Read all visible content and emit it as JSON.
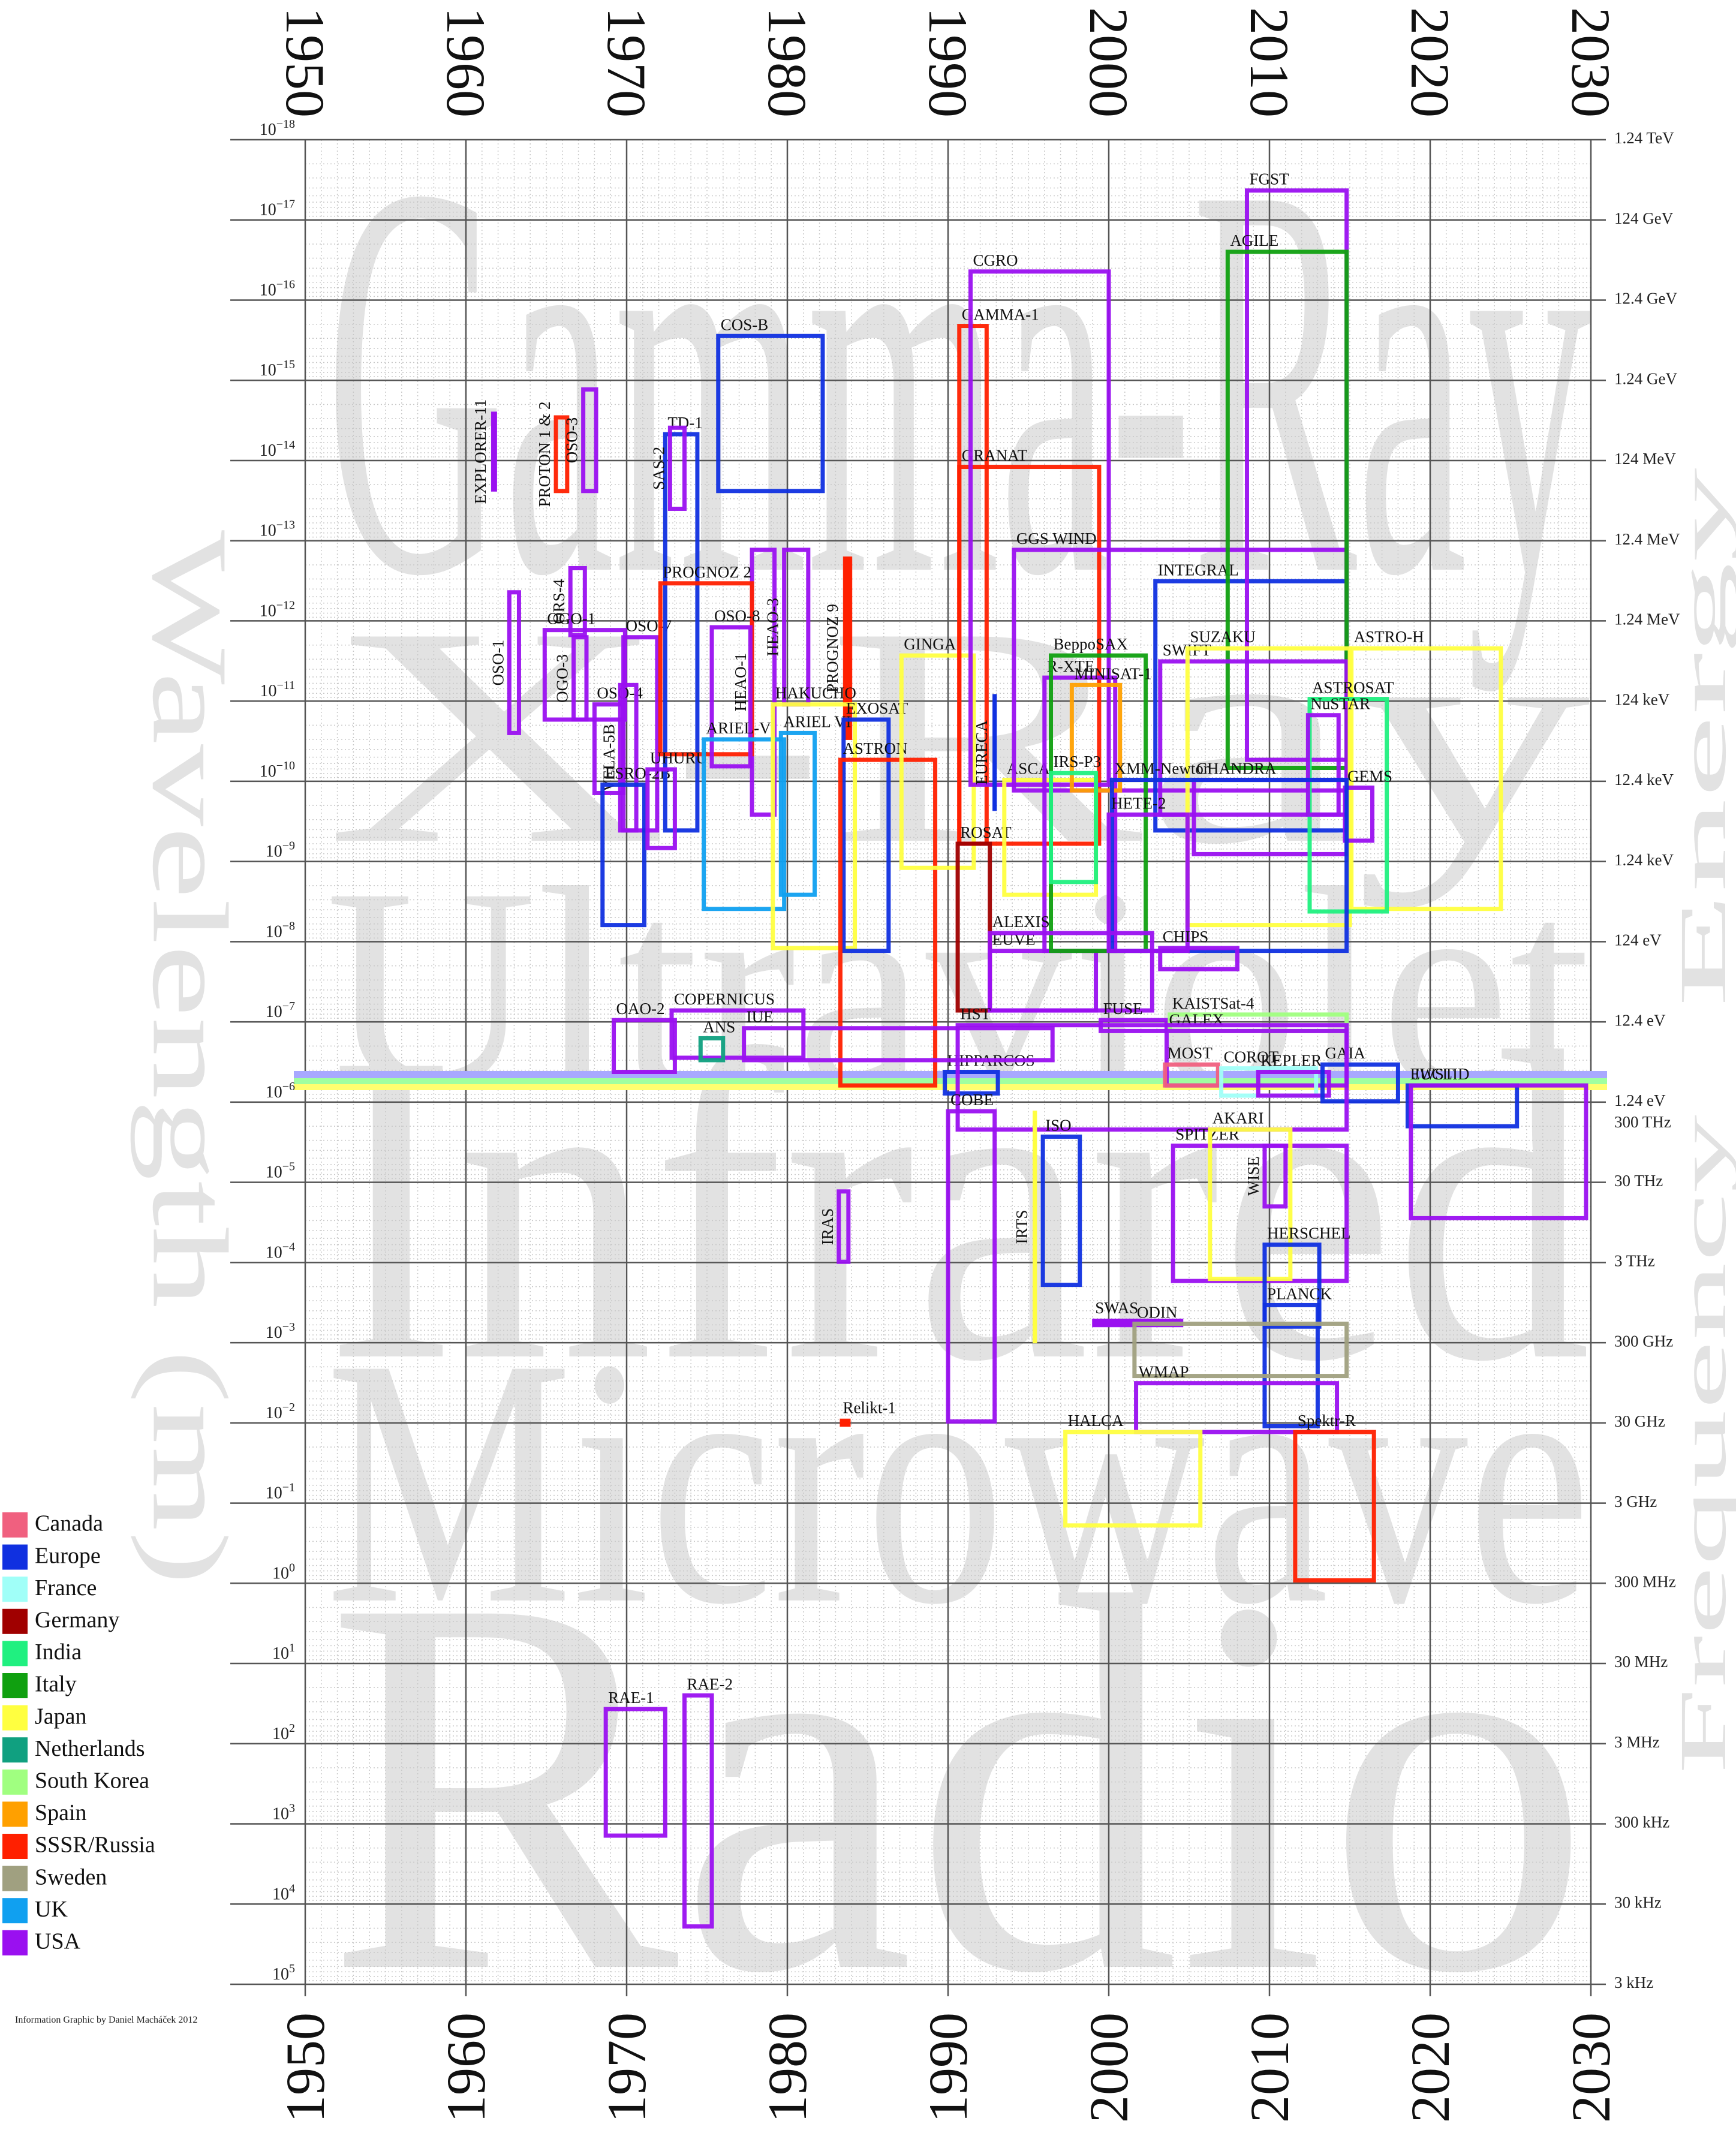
{
  "chart_data": {
    "type": "mission-boxes",
    "band_labels": [
      "Gamma-Ray",
      "X-Ray",
      "Ultraviolet",
      "Infrared",
      "Microwave",
      "Radio"
    ],
    "y_label": "Wavelength (m)",
    "y2_label": "Energy",
    "y3_label": "Frequency",
    "credit": "Information Graphic by Daniel Macháček 2012",
    "xlim": [
      1950,
      2030
    ],
    "xticks": [
      1950,
      1960,
      1970,
      1980,
      1990,
      2000,
      2010,
      2020,
      2030
    ],
    "ylim": [
      1e-18,
      100000.0
    ],
    "log_y": true,
    "grid": true,
    "yticks": [
      {
        "value": 1e-18,
        "label": "10",
        "exponent": "−18"
      },
      {
        "value": 1e-17,
        "label": "10",
        "exponent": "−17"
      },
      {
        "value": 1e-16,
        "label": "10",
        "exponent": "−16"
      },
      {
        "value": 1e-15,
        "label": "10",
        "exponent": "−15"
      },
      {
        "value": 1e-14,
        "label": "10",
        "exponent": "−14"
      },
      {
        "value": 1e-13,
        "label": "10",
        "exponent": "−13"
      },
      {
        "value": 1e-12,
        "label": "10",
        "exponent": "−12"
      },
      {
        "value": 1e-11,
        "label": "10",
        "exponent": "−11"
      },
      {
        "value": 1e-10,
        "label": "10",
        "exponent": "−10"
      },
      {
        "value": 1e-09,
        "label": "10",
        "exponent": "−9"
      },
      {
        "value": 1e-08,
        "label": "10",
        "exponent": "−8"
      },
      {
        "value": 1e-07,
        "label": "10",
        "exponent": "−7"
      },
      {
        "value": 1e-06,
        "label": "10",
        "exponent": "−6"
      },
      {
        "value": 1e-05,
        "label": "10",
        "exponent": "−5"
      },
      {
        "value": 0.0001,
        "label": "10",
        "exponent": "−4"
      },
      {
        "value": 0.001,
        "label": "10",
        "exponent": "−3"
      },
      {
        "value": 0.01,
        "label": "10",
        "exponent": "−2"
      },
      {
        "value": 0.1,
        "label": "10",
        "exponent": "−1"
      },
      {
        "value": 1,
        "label": "10",
        "exponent": "0"
      },
      {
        "value": 10,
        "label": "10",
        "exponent": "1"
      },
      {
        "value": 100,
        "label": "10",
        "exponent": "2"
      },
      {
        "value": 1000,
        "label": "10",
        "exponent": "3"
      },
      {
        "value": 10000,
        "label": "10",
        "exponent": "4"
      },
      {
        "value": 100000,
        "label": "10",
        "exponent": "5"
      }
    ],
    "y2ticks": [
      {
        "value": 1e-18,
        "label": "1.24 TeV"
      },
      {
        "value": 1e-17,
        "label": "124 GeV"
      },
      {
        "value": 1e-16,
        "label": "12.4 GeV"
      },
      {
        "value": 1e-15,
        "label": "1.24 GeV"
      },
      {
        "value": 1e-14,
        "label": "124 MeV"
      },
      {
        "value": 1e-13,
        "label": "12.4 MeV"
      },
      {
        "value": 1e-12,
        "label": "1.24 MeV"
      },
      {
        "value": 1e-11,
        "label": "124 keV"
      },
      {
        "value": 1e-10,
        "label": "12.4 keV"
      },
      {
        "value": 1e-09,
        "label": "1.24 keV"
      },
      {
        "value": 1e-08,
        "label": "124 eV"
      },
      {
        "value": 1e-07,
        "label": "12.4 eV"
      },
      {
        "value": 1e-06,
        "label": "1.24 eV"
      }
    ],
    "y3ticks": [
      {
        "value": 1e-06,
        "label": "300 THz"
      },
      {
        "value": 1e-05,
        "label": "30 THz"
      },
      {
        "value": 0.0001,
        "label": "3 THz"
      },
      {
        "value": 0.001,
        "label": "300 GHz"
      },
      {
        "value": 0.01,
        "label": "30 GHz"
      },
      {
        "value": 0.1,
        "label": "3 GHz"
      },
      {
        "value": 1,
        "label": "300 MHz"
      },
      {
        "value": 10,
        "label": "30 MHz"
      },
      {
        "value": 100,
        "label": "3 MHz"
      },
      {
        "value": 1000,
        "label": "300 kHz"
      },
      {
        "value": 10000,
        "label": "30 kHz"
      },
      {
        "value": 100000,
        "label": "3 kHz"
      }
    ],
    "legend": [
      {
        "name": "Canada",
        "color": "#f0607f"
      },
      {
        "name": "Europe",
        "color": "#1030e0"
      },
      {
        "name": "France",
        "color": "#a0fff8"
      },
      {
        "name": "Germany",
        "color": "#a00000"
      },
      {
        "name": "India",
        "color": "#20f080"
      },
      {
        "name": "Italy",
        "color": "#10a010"
      },
      {
        "name": "Japan",
        "color": "#ffff40"
      },
      {
        "name": "Netherlands",
        "color": "#10a080"
      },
      {
        "name": "South Korea",
        "color": "#a0ff80"
      },
      {
        "name": "Spain",
        "color": "#ffa000"
      },
      {
        "name": "SSSR/Russia",
        "color": "#ff2000"
      },
      {
        "name": "Sweden",
        "color": "#a0a080"
      },
      {
        "name": "UK",
        "color": "#10a0f0"
      },
      {
        "name": "USA",
        "color": "#9a10f0"
      }
    ],
    "missions": [
      {
        "name": "EXPLORER-11",
        "country": "USA",
        "start": 1961.6,
        "end": 1961.9,
        "lo": 2.5e-15,
        "hi": 2.4e-14
      },
      {
        "name": "PROTON 1 & 2",
        "country": "SSSR/Russia",
        "start": 1965.6,
        "end": 1966.3,
        "lo": 2.9e-15,
        "hi": 2.4e-14
      },
      {
        "name": "OSO-3",
        "country": "USA",
        "start": 1967.3,
        "end": 1968.1,
        "lo": 1.3e-15,
        "hi": 2.4e-14
      },
      {
        "name": "ORS-4",
        "country": "USA",
        "start": 1966.5,
        "end": 1967.4,
        "lo": 2.2e-13,
        "hi": 1.5e-12
      },
      {
        "name": "OSO-1",
        "country": "USA",
        "start": 1962.7,
        "end": 1963.3,
        "lo": 4.4e-13,
        "hi": 2.5e-11
      },
      {
        "name": "OGO-1",
        "country": "USA",
        "start": 1964.9,
        "end": 1969.9,
        "lo": 1.3e-12,
        "hi": 1.7e-11
      },
      {
        "name": "OGO-3",
        "country": "USA",
        "start": 1966.7,
        "end": 1967.5,
        "lo": 1.6e-12,
        "hi": 1.7e-11
      },
      {
        "name": "OSO-4",
        "country": "USA",
        "start": 1968.0,
        "end": 1969.8,
        "lo": 1.1e-11,
        "hi": 1.4e-10
      },
      {
        "name": "VELA-5B",
        "country": "USA",
        "start": 1969.6,
        "end": 1970.6,
        "lo": 6.3e-12,
        "hi": 4.1e-10
      },
      {
        "name": "OSO-7",
        "country": "USA",
        "start": 1969.8,
        "end": 1971.9,
        "lo": 1.6e-12,
        "hi": 4.1e-10
      },
      {
        "name": "ESRO-2B",
        "country": "Europe",
        "start": 1968.5,
        "end": 1971.1,
        "lo": 1.1e-10,
        "hi": 6.2e-09
      },
      {
        "name": "TD-1",
        "country": "Europe",
        "start": 1972.4,
        "end": 1974.4,
        "lo": 4.7e-15,
        "hi": 4.1e-10
      },
      {
        "name": "SAS-2",
        "country": "USA",
        "start": 1972.7,
        "end": 1973.6,
        "lo": 3.9e-15,
        "hi": 4e-14
      },
      {
        "name": "COS-B",
        "country": "Europe",
        "start": 1975.7,
        "end": 1982.2,
        "lo": 2.8e-16,
        "hi": 2.4e-14
      },
      {
        "name": "HEAO-1",
        "country": "USA",
        "start": 1977.8,
        "end": 1979.2,
        "lo": 1.3e-13,
        "hi": 2.6e-10
      },
      {
        "name": "HEAO-3",
        "country": "USA",
        "start": 1979.8,
        "end": 1981.3,
        "lo": 1.3e-13,
        "hi": 1.1e-11
      },
      {
        "name": "PROGNOZ 9",
        "country": "SSSR/Russia",
        "start": 1983.5,
        "end": 1984.0,
        "lo": 1.6e-13,
        "hi": 3e-11
      },
      {
        "name": "PROGNOZ 2",
        "country": "SSSR/Russia",
        "start": 1972.1,
        "end": 1977.8,
        "lo": 3.4e-13,
        "hi": 4.6e-11
      },
      {
        "name": "UHURU",
        "country": "USA",
        "start": 1971.3,
        "end": 1973.0,
        "lo": 7.1e-11,
        "hi": 6.8e-10
      },
      {
        "name": "OSO-8",
        "country": "USA",
        "start": 1975.3,
        "end": 1977.7,
        "lo": 1.2e-12,
        "hi": 6.5e-11
      },
      {
        "name": "ARIEL-V",
        "country": "UK",
        "start": 1974.8,
        "end": 1979.8,
        "lo": 3e-11,
        "hi": 3.9e-09
      },
      {
        "name": "ARIEL VI",
        "country": "UK",
        "start": 1979.6,
        "end": 1981.7,
        "lo": 2.5e-11,
        "hi": 2.6e-09
      },
      {
        "name": "HAKUCHO",
        "country": "Japan",
        "start": 1979.1,
        "end": 1984.2,
        "lo": 1.1e-11,
        "hi": 1.2e-08
      },
      {
        "name": "EXOSAT",
        "country": "Europe",
        "start": 1983.5,
        "end": 1986.3,
        "lo": 1.7e-11,
        "hi": 1.3e-08
      },
      {
        "name": "ASTRON",
        "country": "SSSR/Russia",
        "start": 1983.3,
        "end": 1989.2,
        "lo": 5.4e-11,
        "hi": 6.2e-07
      },
      {
        "name": "GINGA",
        "country": "Japan",
        "start": 1987.1,
        "end": 1991.6,
        "lo": 2.7e-12,
        "hi": 1.2e-09
      },
      {
        "name": "GAMMA-1",
        "country": "SSSR/Russia",
        "start": 1990.7,
        "end": 1992.4,
        "lo": 2.1e-16,
        "hi": 6e-10
      },
      {
        "name": "GRANAT",
        "country": "SSSR/Russia",
        "start": 1990.7,
        "end": 1999.4,
        "lo": 1.2e-14,
        "hi": 6e-10
      },
      {
        "name": "CGRO",
        "country": "USA",
        "start": 1991.4,
        "end": 2000.0,
        "lo": 4.4e-17,
        "hi": 1.1e-10
      },
      {
        "name": "ROSAT",
        "country": "Germany",
        "start": 1990.6,
        "end": 1992.6,
        "lo": 6e-10,
        "hi": 7.2e-08
      },
      {
        "name": "EUVE",
        "country": "USA",
        "start": 1992.6,
        "end": 1999.2,
        "lo": 1.3e-08,
        "hi": 7.2e-08
      },
      {
        "name": "EURECA",
        "country": "Europe",
        "start": 1992.8,
        "end": 1993.0,
        "lo": 8.3e-12,
        "hi": 2.3e-10
      },
      {
        "name": "ASCA",
        "country": "Japan",
        "start": 1993.5,
        "end": 1999.2,
        "lo": 9.6e-11,
        "hi": 2.6e-09
      },
      {
        "name": "GGS WIND",
        "country": "USA",
        "start": 1994.1,
        "end": 2014.8,
        "lo": 1.3e-13,
        "hi": 1.3e-10
      },
      {
        "name": "R-XTE",
        "country": "USA",
        "start": 1996.0,
        "end": 2000.4,
        "lo": 5.1e-12,
        "hi": 1.3e-08
      },
      {
        "name": "BeppoSAX",
        "country": "Italy",
        "start": 1996.4,
        "end": 2002.3,
        "lo": 2.7e-12,
        "hi": 1.3e-08
      },
      {
        "name": "MINISAT-1",
        "country": "Spain",
        "start": 1997.7,
        "end": 2000.7,
        "lo": 6.3e-12,
        "hi": 1.3e-10
      },
      {
        "name": "IRS-P3",
        "country": "India",
        "start": 1996.4,
        "end": 1999.2,
        "lo": 7.9e-11,
        "hi": 1.8e-09
      },
      {
        "name": "INTEGRAL",
        "country": "Europe",
        "start": 2002.9,
        "end": 2014.8,
        "lo": 3.2e-13,
        "hi": 4.1e-10
      },
      {
        "name": "FGST",
        "country": "USA",
        "start": 2008.6,
        "end": 2014.8,
        "lo": 4.3e-18,
        "hi": 5.4e-11
      },
      {
        "name": "AGILE",
        "country": "Italy",
        "start": 2007.4,
        "end": 2014.8,
        "lo": 2.5e-17,
        "hi": 6.8e-11
      },
      {
        "name": "SWIFT",
        "country": "USA",
        "start": 2003.2,
        "end": 2014.8,
        "lo": 3.2e-12,
        "hi": 2.6e-10
      },
      {
        "name": "CHANDRA",
        "country": "USA",
        "start": 2005.3,
        "end": 2014.8,
        "lo": 9.6e-11,
        "hi": 8.1e-10
      },
      {
        "name": "SUZAKU",
        "country": "Japan",
        "start": 2004.9,
        "end": 2015.0,
        "lo": 2.2e-12,
        "hi": 6.2e-09
      },
      {
        "name": "ASTRO-H",
        "country": "Japan",
        "start": 2015.1,
        "end": 2024.4,
        "lo": 2.2e-12,
        "hi": 3.9e-09
      },
      {
        "name": "ASTROSAT",
        "country": "India",
        "start": 2012.5,
        "end": 2017.3,
        "lo": 9.4e-12,
        "hi": 4.2e-09
      },
      {
        "name": "NuSTAR",
        "country": "USA",
        "start": 2012.4,
        "end": 2014.3,
        "lo": 1.5e-11,
        "hi": 2.6e-10
      },
      {
        "name": "GEMS",
        "country": "USA",
        "start": 2014.7,
        "end": 2016.4,
        "lo": 1.2e-10,
        "hi": 5.5e-10
      },
      {
        "name": "XMM-Newton",
        "country": "Europe",
        "start": 2000.2,
        "end": 2014.8,
        "lo": 9.6e-11,
        "hi": 1.3e-08
      },
      {
        "name": "HETE-2",
        "country": "USA",
        "start": 2000.0,
        "end": 2004.9,
        "lo": 2.6e-10,
        "hi": 1.3e-08
      },
      {
        "name": "ALEXIS",
        "country": "USA",
        "start": 1992.6,
        "end": 2002.7,
        "lo": 7.8e-09,
        "hi": 7.2e-08
      },
      {
        "name": "CHIPS",
        "country": "USA",
        "start": 2003.2,
        "end": 2008.0,
        "lo": 1.2e-08,
        "hi": 2.2e-08
      },
      {
        "name": "FUSE",
        "country": "USA",
        "start": 1999.5,
        "end": 2003.6,
        "lo": 9.5e-08,
        "hi": 1.3e-07
      },
      {
        "name": "KAISTSat-4",
        "country": "South Korea",
        "start": 2003.8,
        "end": 2014.8,
        "lo": 8.1e-08,
        "hi": 1.3e-07
      },
      {
        "name": "GALEX",
        "country": "USA",
        "start": 2003.6,
        "end": 2014.8,
        "lo": 1.3e-07,
        "hi": 6.2e-07
      },
      {
        "name": "MOST",
        "country": "Canada",
        "start": 2003.5,
        "end": 2006.8,
        "lo": 3.4e-07,
        "hi": 6.2e-07
      },
      {
        "name": "COROT",
        "country": "France",
        "start": 2007.0,
        "end": 2012.9,
        "lo": 3.8e-07,
        "hi": 8.3e-07
      },
      {
        "name": "KEPLER",
        "country": "USA",
        "start": 2009.3,
        "end": 2013.7,
        "lo": 4.2e-07,
        "hi": 8.3e-07
      },
      {
        "name": "GAIA",
        "country": "Europe",
        "start": 2013.3,
        "end": 2018.0,
        "lo": 3.4e-07,
        "hi": 9.8e-07
      },
      {
        "name": "HIPPARCOS",
        "country": "Europe",
        "start": 1989.8,
        "end": 1993.1,
        "lo": 4.2e-07,
        "hi": 7.8e-07
      },
      {
        "name": "HST",
        "country": "USA",
        "start": 1990.6,
        "end": 2014.8,
        "lo": 1.1e-07,
        "hi": 2.2e-06
      },
      {
        "name": "EUCLID",
        "country": "Europe",
        "start": 2018.6,
        "end": 2025.4,
        "lo": 6.2e-07,
        "hi": 2e-06
      },
      {
        "name": "JWST",
        "country": "USA",
        "start": 2018.8,
        "end": 2029.7,
        "lo": 6.2e-07,
        "hi": 2.8e-05
      },
      {
        "name": "OAO-2",
        "country": "USA",
        "start": 1969.2,
        "end": 1973.0,
        "lo": 9.5e-08,
        "hi": 4.2e-07
      },
      {
        "name": "COPERNICUS",
        "country": "USA",
        "start": 1972.8,
        "end": 1981.0,
        "lo": 7.2e-08,
        "hi": 2.8e-07
      },
      {
        "name": "IUE",
        "country": "USA",
        "start": 1977.3,
        "end": 1996.5,
        "lo": 1.2e-07,
        "hi": 3e-07
      },
      {
        "name": "ANS",
        "country": "Netherlands",
        "start": 1974.6,
        "end": 1976.0,
        "lo": 1.6e-07,
        "hi": 3e-07
      },
      {
        "name": "IRAS",
        "country": "USA",
        "start": 1983.2,
        "end": 1983.8,
        "lo": 1.3e-05,
        "hi": 9.8e-05
      },
      {
        "name": "COBE",
        "country": "USA",
        "start": 1990.0,
        "end": 1992.9,
        "lo": 1.3e-06,
        "hi": 0.0096
      },
      {
        "name": "ISO",
        "country": "Europe",
        "start": 1995.9,
        "end": 1998.2,
        "lo": 2.7e-06,
        "hi": 0.00019
      },
      {
        "name": "IRTS",
        "country": "Japan",
        "start": 1995.3,
        "end": 1995.5,
        "lo": 1.3e-06,
        "hi": 0.001
      },
      {
        "name": "SPITZER",
        "country": "USA",
        "start": 2004.0,
        "end": 2014.8,
        "lo": 3.5e-06,
        "hi": 0.00017
      },
      {
        "name": "AKARI",
        "country": "Japan",
        "start": 2006.3,
        "end": 2011.3,
        "lo": 2.2e-06,
        "hi": 0.00016
      },
      {
        "name": "WISE",
        "country": "USA",
        "start": 2009.7,
        "end": 2011.0,
        "lo": 3.5e-06,
        "hi": 2e-05
      },
      {
        "name": "HERSCHEL",
        "country": "Europe",
        "start": 2009.7,
        "end": 2013.1,
        "lo": 6e-05,
        "hi": 0.00063
      },
      {
        "name": "PLANCK",
        "country": "Europe",
        "start": 2009.7,
        "end": 2013.0,
        "lo": 0.00034,
        "hi": 0.011
      },
      {
        "name": "SWAS",
        "country": "USA",
        "start": 1999.0,
        "end": 2004.6,
        "lo": 0.00051,
        "hi": 0.00063
      },
      {
        "name": "ODIN",
        "country": "Sweden",
        "start": 2001.6,
        "end": 2014.8,
        "lo": 0.00058,
        "hi": 0.0026
      },
      {
        "name": "WMAP",
        "country": "USA",
        "start": 2001.7,
        "end": 2014.2,
        "lo": 0.0032,
        "hi": 0.013
      },
      {
        "name": "HALCA",
        "country": "Japan",
        "start": 1997.3,
        "end": 2005.7,
        "lo": 0.013,
        "hi": 0.19
      },
      {
        "name": "Spektr-R",
        "country": "SSSR/Russia",
        "start": 2011.6,
        "end": 2016.5,
        "lo": 0.013,
        "hi": 0.92
      },
      {
        "name": "Relikt-1",
        "country": "SSSR/Russia",
        "start": 1983.3,
        "end": 1983.9,
        "lo": 0.009,
        "hi": 0.011
      },
      {
        "name": "RAE-1",
        "country": "USA",
        "start": 1968.7,
        "end": 1972.4,
        "lo": 37,
        "hi": 1400
      },
      {
        "name": "RAE-2",
        "country": "USA",
        "start": 1973.6,
        "end": 1975.3,
        "lo": 25,
        "hi": 19000
      }
    ]
  }
}
